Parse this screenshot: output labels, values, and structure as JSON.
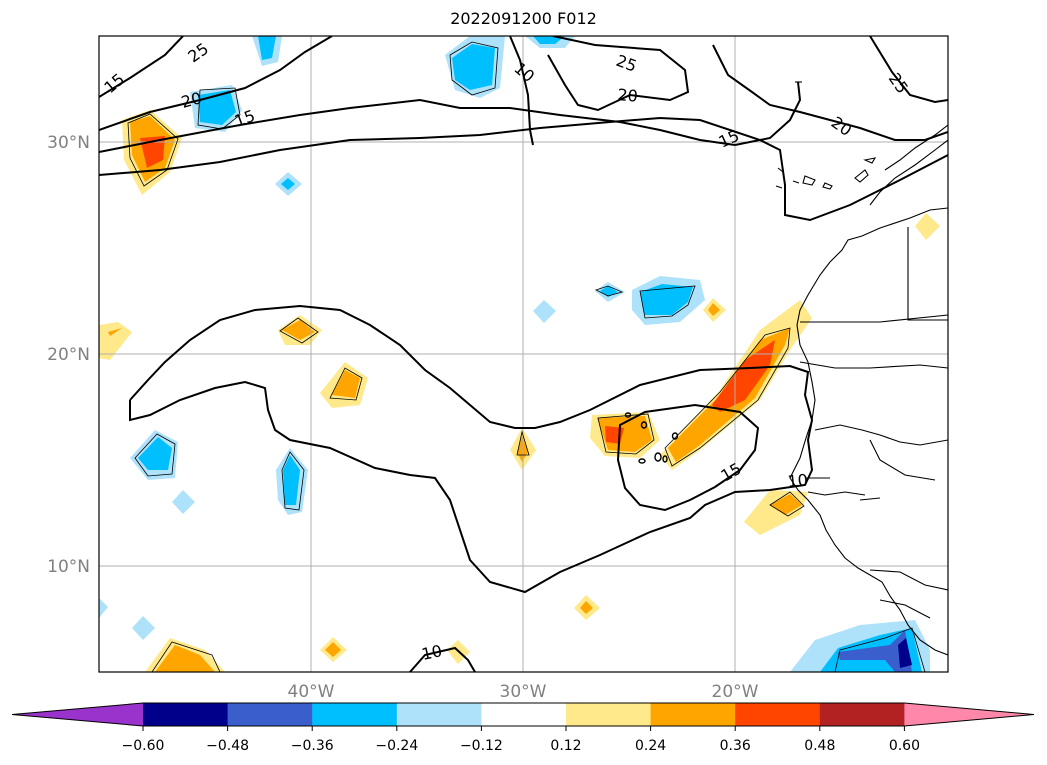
{
  "title": "2022091200 F012",
  "map": {
    "lat_labels": [
      "30°N",
      "20°N",
      "10°N"
    ],
    "lon_labels": [
      "40°W",
      "30°W",
      "20°W"
    ],
    "contour_labels": [
      "15",
      "25",
      "10",
      "25",
      "20",
      "25",
      "20",
      "15",
      "15",
      "20",
      "15",
      "10",
      "10"
    ],
    "contour_color": "#000000",
    "grid_color": "#b0b0b0"
  },
  "colorbar": {
    "ticks": [
      "−0.60",
      "−0.48",
      "−0.36",
      "−0.24",
      "−0.12",
      "0.12",
      "0.24",
      "0.36",
      "0.48",
      "0.60"
    ],
    "colors": [
      "#9933cc",
      "#00008b",
      "#3a5fcd",
      "#00bfff",
      "#aee2fa",
      "#ffffff",
      "#ffe98a",
      "#ffa500",
      "#ff4500",
      "#b22222",
      "#ff88aa"
    ]
  }
}
